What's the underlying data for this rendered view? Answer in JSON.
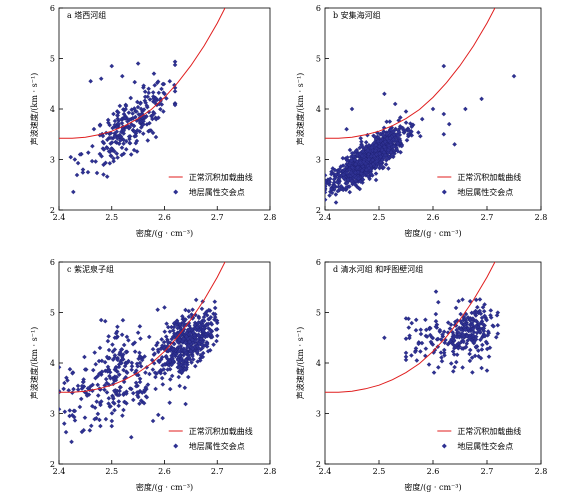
{
  "chart_data": [
    {
      "type": "scatter",
      "title": "a 塔西河组",
      "xlabel": "密度/(g · cm⁻³)",
      "ylabel": "声波速度/(km · s⁻¹)",
      "xlim": [
        2.4,
        2.8
      ],
      "ylim": [
        2,
        6
      ],
      "xticks": [
        "2.4",
        "2.5",
        "2.6",
        "2.7",
        "2.8"
      ],
      "yticks": [
        "2",
        "3",
        "4",
        "5",
        "6"
      ],
      "legend": {
        "placement": "bottom-right",
        "line_label": "正常沉积加载曲线",
        "points_label": "地层属性交会点"
      },
      "series": [
        {
          "name": "正常沉积加载曲线",
          "kind": "line",
          "color": "#e01e1e",
          "x": [
            2.4,
            2.425,
            2.45,
            2.475,
            2.5,
            2.525,
            2.55,
            2.575,
            2.6,
            2.625,
            2.65,
            2.675,
            2.7,
            2.725,
            2.75
          ],
          "y": [
            3.42,
            3.42,
            3.44,
            3.49,
            3.56,
            3.67,
            3.81,
            3.99,
            4.23,
            4.52,
            4.86,
            5.25,
            5.7,
            6.21,
            6.8
          ]
        },
        {
          "name": "地层属性交会点",
          "kind": "points",
          "color": "#2e3192",
          "cloud": {
            "n": 260,
            "x_center": 2.535,
            "x_spread": 0.04,
            "y_base": 3.7,
            "y_slope": 8.0,
            "y_spread": 0.28,
            "x_min": 2.41,
            "x_max": 2.62,
            "seed": 11
          },
          "outliers": [
            [
              2.5,
              4.85
            ],
            [
              2.48,
              4.6
            ],
            [
              2.46,
              4.55
            ],
            [
              2.52,
              4.65
            ],
            [
              2.55,
              4.9
            ],
            [
              2.58,
              4.7
            ],
            [
              2.43,
              3.0
            ],
            [
              2.44,
              3.1
            ],
            [
              2.57,
              4.4
            ],
            [
              2.6,
              4.3
            ],
            [
              2.61,
              4.55
            ]
          ]
        }
      ]
    },
    {
      "type": "scatter",
      "title": "b 安集海河组",
      "xlabel": "密度/(g · cm⁻³)",
      "ylabel": "声波速度/(km · s⁻¹)",
      "xlim": [
        2.4,
        2.8
      ],
      "ylim": [
        2,
        6
      ],
      "xticks": [
        "2.4",
        "2.5",
        "2.6",
        "2.7",
        "2.8"
      ],
      "yticks": [
        "2",
        "3",
        "4",
        "5",
        "6"
      ],
      "legend": {
        "placement": "bottom-right",
        "line_label": "正常沉积加载曲线",
        "points_label": "地层属性交会点"
      },
      "series": [
        {
          "name": "正常沉积加载曲线",
          "kind": "line",
          "color": "#e01e1e",
          "x": [
            2.4,
            2.425,
            2.45,
            2.475,
            2.5,
            2.525,
            2.55,
            2.575,
            2.6,
            2.625,
            2.65,
            2.675,
            2.7,
            2.725,
            2.75
          ],
          "y": [
            3.42,
            3.42,
            3.44,
            3.49,
            3.56,
            3.67,
            3.81,
            3.99,
            4.23,
            4.52,
            4.86,
            5.25,
            5.7,
            6.21,
            6.8
          ]
        },
        {
          "name": "地层属性交会点",
          "kind": "points",
          "color": "#2e3192",
          "cloud": {
            "n": 1000,
            "x_center": 2.48,
            "x_spread": 0.032,
            "y_base": 3.0,
            "y_slope": 7.0,
            "y_spread": 0.16,
            "x_min": 2.4,
            "x_max": 2.6,
            "seed": 23
          },
          "outliers": [
            [
              2.51,
              4.3
            ],
            [
              2.53,
              4.1
            ],
            [
              2.55,
              3.95
            ],
            [
              2.58,
              3.8
            ],
            [
              2.6,
              4.0
            ],
            [
              2.62,
              3.5
            ],
            [
              2.62,
              3.9
            ],
            [
              2.63,
              3.7
            ],
            [
              2.64,
              3.3
            ],
            [
              2.66,
              4.0
            ],
            [
              2.69,
              4.2
            ],
            [
              2.62,
              4.85
            ],
            [
              2.75,
              4.65
            ],
            [
              2.45,
              4.0
            ],
            [
              2.44,
              3.6
            ],
            [
              2.52,
              3.75
            ],
            [
              2.56,
              3.55
            ]
          ]
        }
      ]
    },
    {
      "type": "scatter",
      "title": "c 紫泥泉子组",
      "xlabel": "密度/(g · cm⁻³)",
      "ylabel": "声波速度/(km · s⁻¹)",
      "xlim": [
        2.4,
        2.8
      ],
      "ylim": [
        2,
        6
      ],
      "xticks": [
        "2.4",
        "2.5",
        "2.6",
        "2.7",
        "2.8"
      ],
      "yticks": [
        "2",
        "3",
        "4",
        "5",
        "6"
      ],
      "legend": {
        "placement": "bottom-right",
        "line_label": "正常沉积加载曲线",
        "points_label": "地层属性交会点"
      },
      "series": [
        {
          "name": "正常沉积加载曲线",
          "kind": "line",
          "color": "#e01e1e",
          "x": [
            2.4,
            2.425,
            2.45,
            2.475,
            2.5,
            2.525,
            2.55,
            2.575,
            2.6,
            2.625,
            2.65,
            2.675,
            2.7,
            2.725,
            2.75
          ],
          "y": [
            3.42,
            3.42,
            3.44,
            3.49,
            3.56,
            3.67,
            3.81,
            3.99,
            4.23,
            4.52,
            4.86,
            5.25,
            5.7,
            6.21,
            6.8
          ]
        },
        {
          "name": "地层属性交会点",
          "kind": "points",
          "color": "#2e3192",
          "cloud": {
            "n": 420,
            "x_center": 2.645,
            "x_spread": 0.024,
            "y_base": 4.45,
            "y_slope": 6.0,
            "y_spread": 0.26,
            "x_min": 2.58,
            "x_max": 2.7,
            "seed": 37
          },
          "cloud2": {
            "n": 300,
            "x_center": 2.52,
            "x_spread": 0.06,
            "y_base": 3.75,
            "y_slope": 4.0,
            "y_spread": 0.45,
            "x_min": 2.4,
            "x_max": 2.64,
            "seed": 41
          },
          "outliers": [
            [
              2.41,
              2.8
            ],
            [
              2.42,
              2.95
            ],
            [
              2.43,
              3.05
            ],
            [
              2.5,
              2.75
            ],
            [
              2.48,
              4.85
            ],
            [
              2.55,
              4.6
            ],
            [
              2.6,
              5.1
            ],
            [
              2.66,
              5.25
            ]
          ]
        }
      ]
    },
    {
      "type": "scatter",
      "title": "d 清水河组 和呼图壁河组",
      "xlabel": "密度/(g · cm⁻³)",
      "ylabel": "声波速度/(km · s⁻¹)",
      "xlim": [
        2.4,
        2.8
      ],
      "ylim": [
        2,
        6
      ],
      "xticks": [
        "2.4",
        "2.5",
        "2.6",
        "2.7",
        "2.8"
      ],
      "yticks": [
        "2",
        "3",
        "4",
        "5",
        "6"
      ],
      "legend": {
        "placement": "bottom-right",
        "line_label": "正常沉积加载曲线",
        "points_label": "地层属性交会点"
      },
      "series": [
        {
          "name": "正常沉积加载曲线",
          "kind": "line",
          "color": "#e01e1e",
          "x": [
            2.4,
            2.425,
            2.45,
            2.475,
            2.5,
            2.525,
            2.55,
            2.575,
            2.6,
            2.625,
            2.65,
            2.675,
            2.7,
            2.725,
            2.75
          ],
          "y": [
            3.42,
            3.42,
            3.44,
            3.49,
            3.56,
            3.67,
            3.81,
            3.99,
            4.23,
            4.52,
            4.86,
            5.25,
            5.7,
            6.21,
            6.8
          ]
        },
        {
          "name": "地层属性交会点",
          "kind": "points",
          "color": "#2e3192",
          "cloud": {
            "n": 210,
            "x_center": 2.67,
            "x_spread": 0.025,
            "y_base": 4.6,
            "y_slope": 3.0,
            "y_spread": 0.28,
            "x_min": 2.6,
            "x_max": 2.72,
            "seed": 53
          },
          "cloud2": {
            "n": 70,
            "x_center": 2.6,
            "x_spread": 0.028,
            "y_base": 4.45,
            "y_slope": 2.0,
            "y_spread": 0.25,
            "x_min": 2.55,
            "x_max": 2.66,
            "seed": 59
          },
          "outliers": [
            [
              2.51,
              4.5
            ],
            [
              2.55,
              4.2
            ],
            [
              2.56,
              4.15
            ],
            [
              2.57,
              4.05
            ],
            [
              2.69,
              3.9
            ],
            [
              2.7,
              3.85
            ],
            [
              2.68,
              5.25
            ]
          ]
        }
      ]
    }
  ]
}
